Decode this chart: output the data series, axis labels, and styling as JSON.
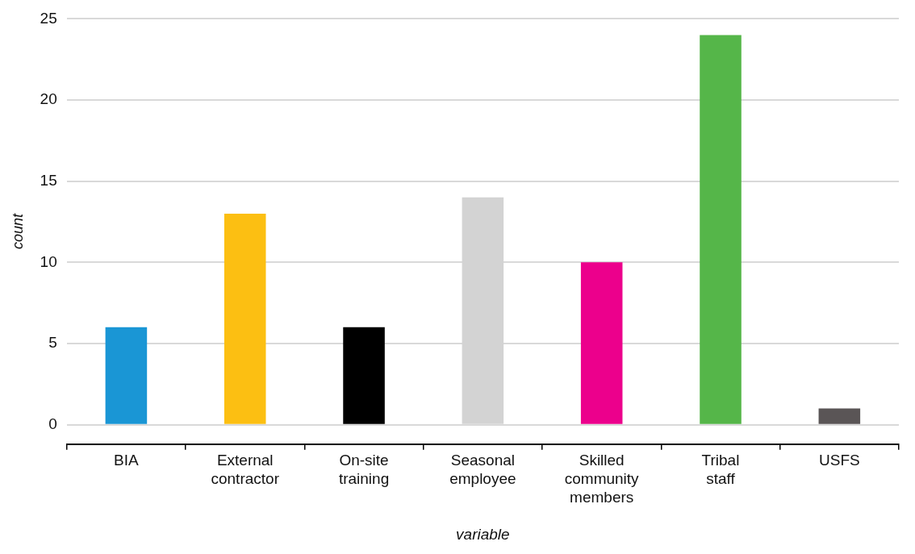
{
  "chart_data": {
    "type": "bar",
    "xlabel": "variable",
    "ylabel": "count",
    "categories": [
      "BIA",
      "External contractor",
      "On-site training",
      "Seasonal employee",
      "Skilled community members",
      "Tribal staff",
      "USFS"
    ],
    "values": [
      6,
      13,
      6,
      14,
      10,
      24,
      1
    ],
    "colors": [
      "#1a96d5",
      "#fcbf12",
      "#000000",
      "#d3d3d3",
      "#ec008c",
      "#55b649",
      "#5a5556"
    ],
    "ylim": [
      -1.2,
      25
    ],
    "yticks": [
      0,
      5,
      10,
      15,
      20,
      25
    ],
    "grid": "y",
    "legend": false
  }
}
